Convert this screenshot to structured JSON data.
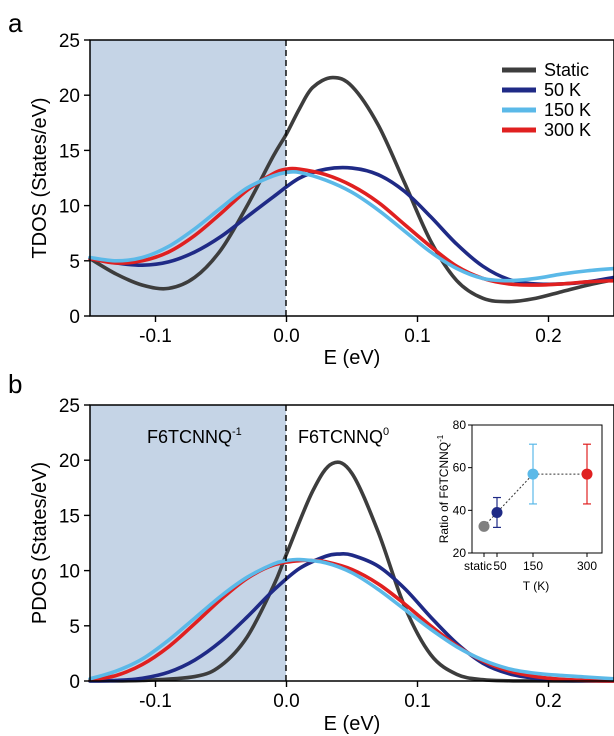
{
  "chart_data": [
    {
      "type": "line",
      "panel_label": "a",
      "xlabel": "E (eV)",
      "ylabel": "TDOS (States/eV)",
      "xlim": [
        -0.15,
        0.25
      ],
      "ylim": [
        0,
        25
      ],
      "xticks": [
        -0.1,
        0.0,
        0.1,
        0.2
      ],
      "xtick_labels": [
        "-0.1",
        "0.0",
        "0.1",
        "0.2"
      ],
      "yticks": [
        0,
        5,
        10,
        15,
        20,
        25
      ],
      "ytick_labels": [
        "0",
        "5",
        "10",
        "15",
        "20",
        "25"
      ],
      "shaded_region": {
        "x_from": -0.15,
        "x_to": 0.0,
        "color": "#c5d4e6"
      },
      "vline": {
        "x": 0.0,
        "style": "dashed"
      },
      "legend_position": "top-right",
      "series": [
        {
          "name": "Static",
          "color": "#3d3d3d",
          "x": [
            -0.15,
            -0.13,
            -0.11,
            -0.09,
            -0.07,
            -0.05,
            -0.03,
            -0.01,
            0.0,
            0.01,
            0.02,
            0.035,
            0.05,
            0.07,
            0.09,
            0.11,
            0.13,
            0.15,
            0.17,
            0.19,
            0.21,
            0.23,
            0.25
          ],
          "y": [
            5.2,
            3.8,
            2.8,
            2.5,
            3.5,
            6.0,
            10.0,
            14.5,
            16.5,
            18.8,
            20.7,
            21.6,
            20.8,
            17.3,
            12.1,
            6.8,
            3.2,
            1.6,
            1.3,
            1.6,
            2.2,
            2.8,
            3.3
          ]
        },
        {
          "name": "50 K",
          "color": "#1f2a86",
          "x": [
            -0.15,
            -0.13,
            -0.11,
            -0.09,
            -0.07,
            -0.05,
            -0.03,
            -0.01,
            0.01,
            0.03,
            0.05,
            0.07,
            0.09,
            0.11,
            0.13,
            0.15,
            0.17,
            0.19,
            0.21,
            0.23,
            0.25
          ],
          "y": [
            5.2,
            4.8,
            4.6,
            4.9,
            5.8,
            7.2,
            9.0,
            10.8,
            12.5,
            13.3,
            13.4,
            12.8,
            11.3,
            9.0,
            6.5,
            4.5,
            3.3,
            2.9,
            2.9,
            3.1,
            3.5
          ]
        },
        {
          "name": "150 K",
          "color": "#5bb9e8",
          "x": [
            -0.15,
            -0.13,
            -0.11,
            -0.09,
            -0.07,
            -0.05,
            -0.03,
            -0.01,
            0.0,
            0.01,
            0.03,
            0.05,
            0.07,
            0.09,
            0.11,
            0.13,
            0.15,
            0.17,
            0.19,
            0.21,
            0.23,
            0.25
          ],
          "y": [
            5.3,
            5.0,
            5.3,
            6.3,
            7.9,
            9.8,
            11.6,
            12.7,
            13.0,
            13.0,
            12.3,
            11.2,
            9.6,
            7.7,
            5.8,
            4.3,
            3.4,
            3.2,
            3.4,
            3.8,
            4.1,
            4.3
          ]
        },
        {
          "name": "300 K",
          "color": "#e02020",
          "x": [
            -0.15,
            -0.13,
            -0.11,
            -0.09,
            -0.07,
            -0.05,
            -0.03,
            -0.01,
            0.0,
            0.01,
            0.03,
            0.05,
            0.07,
            0.09,
            0.11,
            0.13,
            0.15,
            0.17,
            0.19,
            0.21,
            0.23,
            0.25
          ],
          "y": [
            5.2,
            4.8,
            5.0,
            5.8,
            7.3,
            9.3,
            11.4,
            12.9,
            13.3,
            13.3,
            12.8,
            11.8,
            10.3,
            8.3,
            6.3,
            4.5,
            3.4,
            2.9,
            2.8,
            2.9,
            3.1,
            3.2
          ]
        }
      ]
    },
    {
      "type": "line",
      "panel_label": "b",
      "xlabel": "E (eV)",
      "ylabel": "PDOS (States/eV)",
      "xlim": [
        -0.15,
        0.25
      ],
      "ylim": [
        0,
        25
      ],
      "xticks": [
        -0.1,
        0.0,
        0.1,
        0.2
      ],
      "xtick_labels": [
        "-0.1",
        "0.0",
        "0.1",
        "0.2"
      ],
      "yticks": [
        0,
        5,
        10,
        15,
        20,
        25
      ],
      "ytick_labels": [
        "0",
        "5",
        "10",
        "15",
        "20",
        "25"
      ],
      "shaded_region": {
        "x_from": -0.15,
        "x_to": 0.0,
        "color": "#c5d4e6"
      },
      "vline": {
        "x": 0.0,
        "style": "dashed"
      },
      "annotations": [
        {
          "base": "F6TCNNQ",
          "sup": "-1"
        },
        {
          "base": "F6TCNNQ",
          "sup": "0"
        }
      ],
      "series": [
        {
          "name": "Static",
          "color": "#3d3d3d",
          "x": [
            -0.15,
            -0.11,
            -0.07,
            -0.05,
            -0.03,
            -0.01,
            0.0,
            0.02,
            0.035,
            0.05,
            0.07,
            0.09,
            0.11,
            0.13,
            0.15,
            0.17,
            0.19,
            0.25
          ],
          "y": [
            0.0,
            0.05,
            0.4,
            1.4,
            4.0,
            8.6,
            11.5,
            17.2,
            19.7,
            18.8,
            13.5,
            6.8,
            2.4,
            0.6,
            0.12,
            0.02,
            0.0,
            0.0
          ]
        },
        {
          "name": "50 K",
          "color": "#1f2a86",
          "x": [
            -0.15,
            -0.13,
            -0.11,
            -0.09,
            -0.07,
            -0.05,
            -0.03,
            -0.01,
            0.01,
            0.03,
            0.04,
            0.05,
            0.07,
            0.09,
            0.11,
            0.13,
            0.15,
            0.17,
            0.19,
            0.21,
            0.23,
            0.25
          ],
          "y": [
            0.0,
            0.05,
            0.25,
            0.8,
            1.9,
            3.6,
            5.8,
            8.2,
            10.2,
            11.3,
            11.5,
            11.4,
            10.4,
            8.4,
            5.8,
            3.4,
            1.6,
            0.65,
            0.25,
            0.08,
            0.03,
            0.0
          ]
        },
        {
          "name": "150 K",
          "color": "#5bb9e8",
          "x": [
            -0.15,
            -0.13,
            -0.11,
            -0.09,
            -0.07,
            -0.05,
            -0.03,
            -0.01,
            0.0,
            0.01,
            0.03,
            0.05,
            0.07,
            0.09,
            0.11,
            0.13,
            0.15,
            0.17,
            0.19,
            0.21,
            0.23,
            0.25
          ],
          "y": [
            0.2,
            0.9,
            2.0,
            3.7,
            5.7,
            7.7,
            9.4,
            10.6,
            10.9,
            11.0,
            10.7,
            9.8,
            8.3,
            6.5,
            4.7,
            3.1,
            1.9,
            1.1,
            0.7,
            0.5,
            0.35,
            0.2
          ]
        },
        {
          "name": "300 K",
          "color": "#e02020",
          "x": [
            -0.15,
            -0.13,
            -0.11,
            -0.09,
            -0.07,
            -0.05,
            -0.03,
            -0.01,
            0.01,
            0.02,
            0.03,
            0.05,
            0.07,
            0.09,
            0.11,
            0.13,
            0.15,
            0.17,
            0.19,
            0.21,
            0.23,
            0.25
          ],
          "y": [
            0.1,
            0.5,
            1.5,
            3.1,
            5.2,
            7.4,
            9.3,
            10.5,
            10.9,
            10.9,
            10.8,
            10.1,
            8.8,
            7.0,
            5.0,
            3.2,
            1.8,
            0.9,
            0.4,
            0.15,
            0.05,
            0.0
          ]
        }
      ]
    },
    {
      "type": "scatter",
      "role": "inset",
      "xlabel": "T (K)",
      "ylabel": "Ratio of F6TCNNQ",
      "ylabel_sup": "-1",
      "ylim": [
        20,
        80
      ],
      "yticks": [
        20,
        40,
        60,
        80
      ],
      "ytick_labels": [
        "20",
        "40",
        "60",
        "80"
      ],
      "xticks": [
        0,
        50,
        150,
        300
      ],
      "xtick_labels": [
        "static",
        "50",
        "150",
        "300"
      ],
      "points": [
        {
          "x": 0,
          "x_label": "static",
          "y": 32.5,
          "err": 0,
          "color": "#808080"
        },
        {
          "x": 50,
          "x_label": "50",
          "y": 39,
          "err": 7,
          "color": "#1f2a86"
        },
        {
          "x": 150,
          "x_label": "150",
          "y": 57,
          "err": 14,
          "color": "#5bb9e8"
        },
        {
          "x": 300,
          "x_label": "300",
          "y": 57,
          "err": 14,
          "color": "#e02020"
        }
      ]
    }
  ]
}
